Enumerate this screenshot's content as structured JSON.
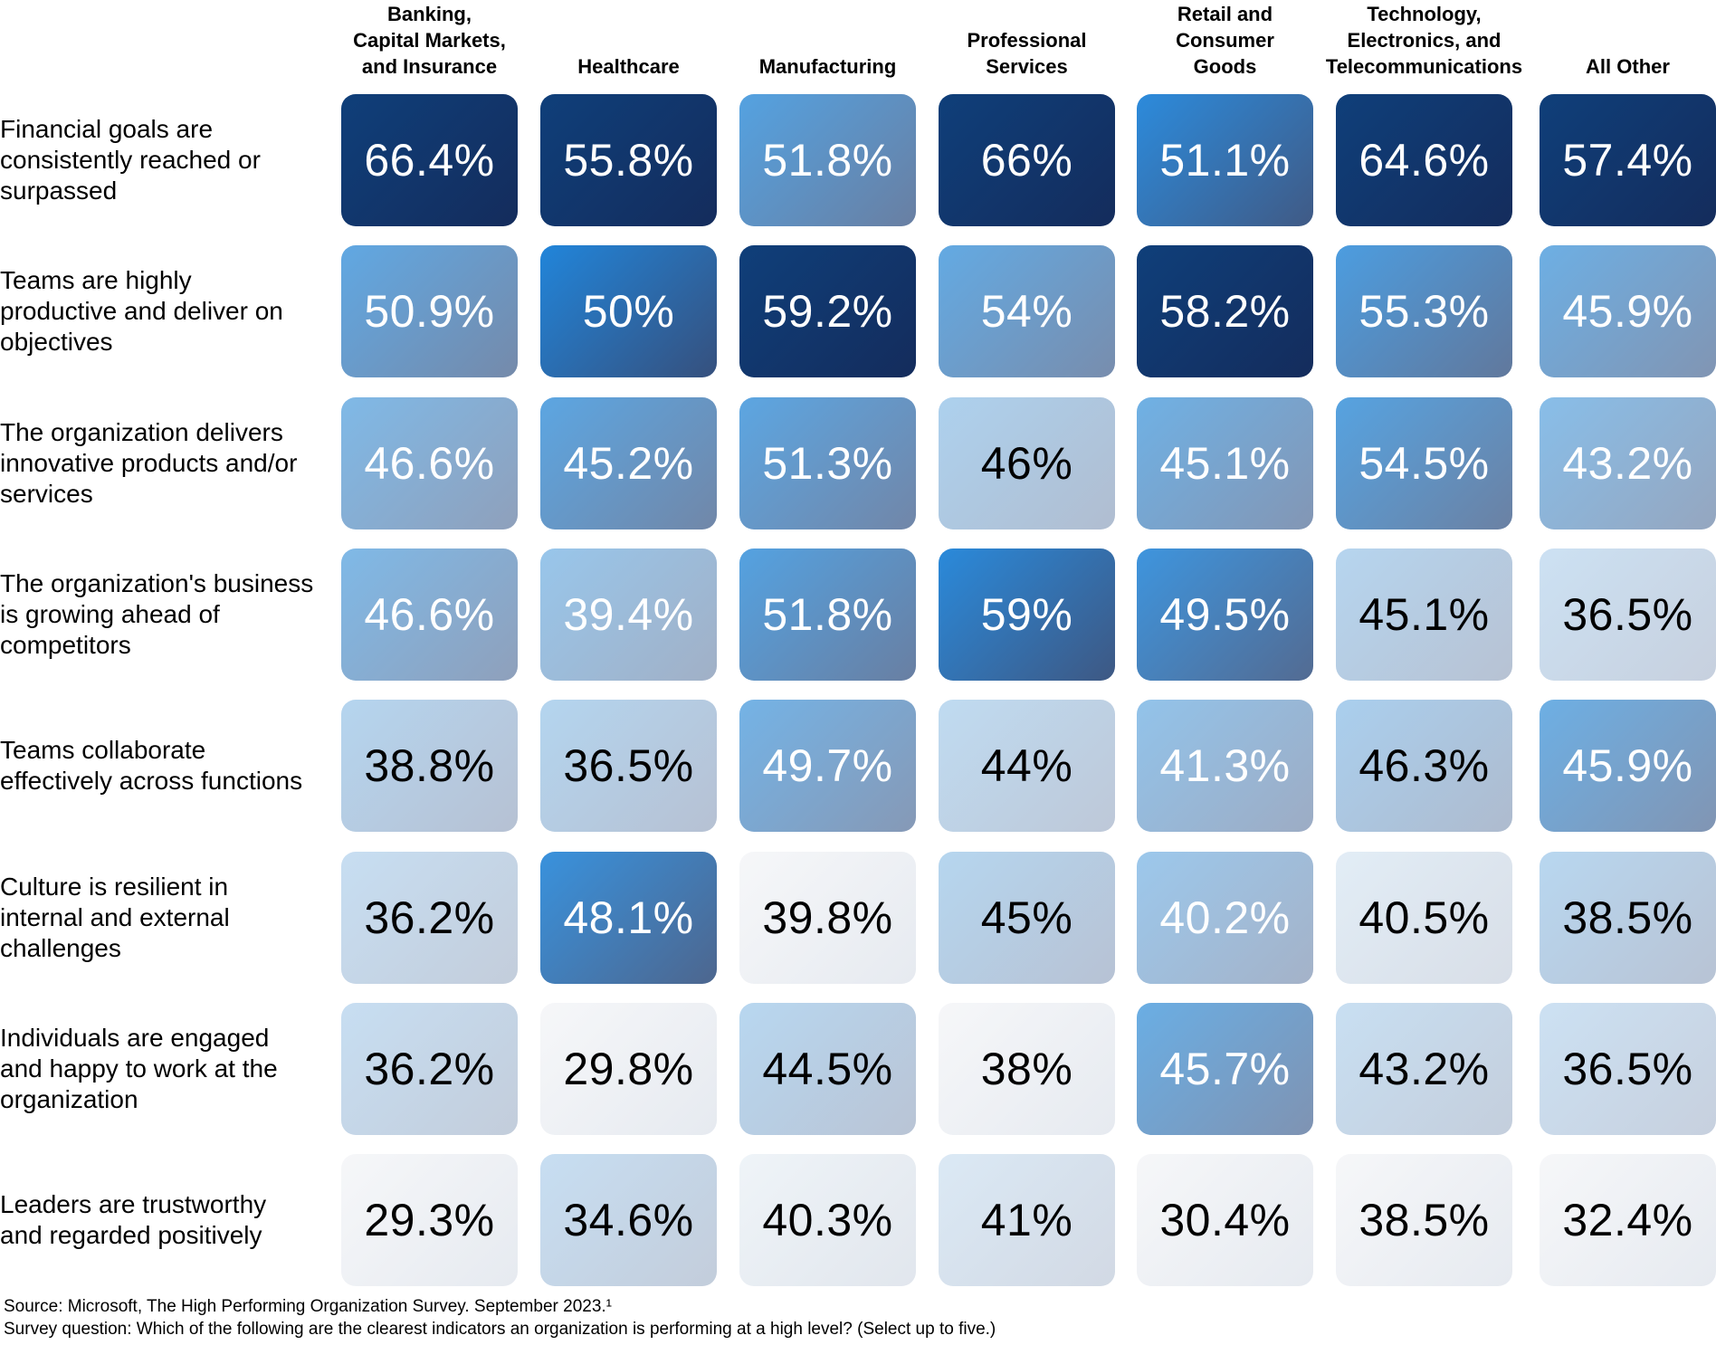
{
  "chart_data": {
    "type": "heatmap",
    "columns": [
      "Banking,\nCapital Markets,\nand Insurance",
      "Healthcare",
      "Manufacturing",
      "Professional\nServices",
      "Retail and\nConsumer\nGoods",
      "Technology,\nElectronics, and\nTelecommunications",
      "All Other"
    ],
    "rows": [
      "Financial goals are\nconsistently reached or\nsurpassed",
      "Teams are highly\nproductive and deliver on\nobjectives",
      "The organization delivers\ninnovative products and/or\nservices",
      "The organization's business\nis growing ahead of\ncompetitors",
      "Teams collaborate\neffectively across functions",
      "Culture is resilient in\ninternal and external\nchallenges",
      "Individuals are engaged\nand happy to work at the\norganization",
      "Leaders are trustworthy\nand regarded positively"
    ],
    "labels": [
      [
        "66.4%",
        "55.8%",
        "51.8%",
        "66%",
        "51.1%",
        "64.6%",
        "57.4%"
      ],
      [
        "50.9%",
        "50%",
        "59.2%",
        "54%",
        "58.2%",
        "55.3%",
        "45.9%"
      ],
      [
        "46.6%",
        "45.2%",
        "51.3%",
        "46%",
        "45.1%",
        "54.5%",
        "43.2%"
      ],
      [
        "46.6%",
        "39.4%",
        "51.8%",
        "59%",
        "49.5%",
        "45.1%",
        "36.5%"
      ],
      [
        "38.8%",
        "36.5%",
        "49.7%",
        "44%",
        "41.3%",
        "46.3%",
        "45.9%"
      ],
      [
        "36.2%",
        "48.1%",
        "39.8%",
        "45%",
        "40.2%",
        "40.5%",
        "38.5%"
      ],
      [
        "36.2%",
        "29.8%",
        "44.5%",
        "38%",
        "45.7%",
        "43.2%",
        "36.5%"
      ],
      [
        "29.3%",
        "34.6%",
        "40.3%",
        "41%",
        "30.4%",
        "38.5%",
        "32.4%"
      ]
    ],
    "values": [
      [
        66.4,
        55.8,
        51.8,
        66,
        51.1,
        64.6,
        57.4
      ],
      [
        50.9,
        50,
        59.2,
        54,
        58.2,
        55.3,
        45.9
      ],
      [
        46.6,
        45.2,
        51.3,
        46,
        45.1,
        54.5,
        43.2
      ],
      [
        46.6,
        39.4,
        51.8,
        59,
        49.5,
        45.1,
        36.5
      ],
      [
        38.8,
        36.5,
        49.7,
        44,
        41.3,
        46.3,
        45.9
      ],
      [
        36.2,
        48.1,
        39.8,
        45,
        40.2,
        40.5,
        38.5
      ],
      [
        36.2,
        29.8,
        44.5,
        38,
        45.7,
        43.2,
        36.5
      ],
      [
        29.3,
        34.6,
        40.3,
        41,
        30.4,
        38.5,
        32.4
      ]
    ],
    "color_scale": "per-column",
    "colors": {
      "low_start": "#f6f7f9",
      "low_end": "#e6eaf0",
      "mid_start": "#6aaee4",
      "mid_end": "#7f93b2",
      "high_start": "#0f3f7a",
      "high_end": "#142c5c",
      "bright_start": "#0a78d7",
      "bright_end": "#1e3b6c",
      "text_dark": "#000000",
      "text_light": "#ffffff"
    }
  },
  "footnotes": {
    "source": "Source: Microsoft, The High Performing Organization Survey. September 2023.¹",
    "question": "Survey question: Which of the following are the clearest indicators an organization is performing at a high level? (Select up to five.)"
  }
}
